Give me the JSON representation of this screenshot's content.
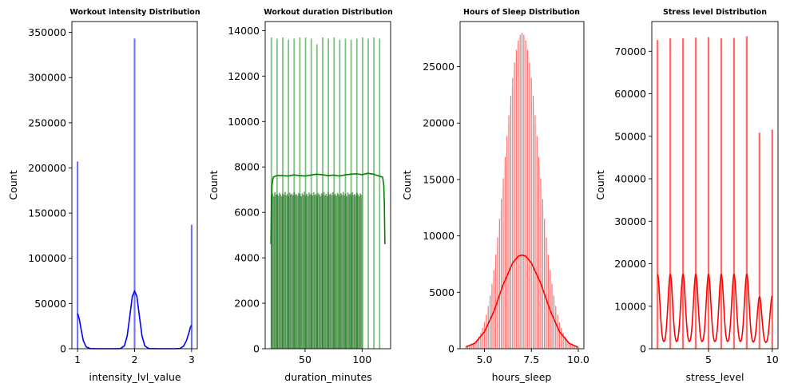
{
  "chart_data": [
    {
      "type": "histogram",
      "title": "Workout intensity Distribution",
      "xlabel": "intensity_lvl_value",
      "ylabel": "Count",
      "xlim": [
        0.9,
        3.1
      ],
      "ylim": [
        0,
        362000
      ],
      "xticks": [
        1,
        2,
        3
      ],
      "yticks": [
        0,
        50000,
        100000,
        150000,
        200000,
        250000,
        300000,
        350000
      ],
      "color": "#0000ff",
      "bar_width": 0.012,
      "bars": [
        {
          "x": 1,
          "count": 207000
        },
        {
          "x": 2,
          "count": 343000
        },
        {
          "x": 3,
          "count": 137000
        }
      ],
      "kde": [
        [
          1.0,
          39000
        ],
        [
          1.03,
          33000
        ],
        [
          1.06,
          22000
        ],
        [
          1.1,
          9000
        ],
        [
          1.15,
          2000
        ],
        [
          1.22,
          200
        ],
        [
          1.35,
          0
        ],
        [
          1.6,
          0
        ],
        [
          1.75,
          200
        ],
        [
          1.82,
          3000
        ],
        [
          1.87,
          14000
        ],
        [
          1.92,
          38000
        ],
        [
          1.96,
          58000
        ],
        [
          2.0,
          64000
        ],
        [
          2.04,
          58000
        ],
        [
          2.08,
          38000
        ],
        [
          2.13,
          14000
        ],
        [
          2.18,
          3000
        ],
        [
          2.25,
          200
        ],
        [
          2.4,
          0
        ],
        [
          2.7,
          0
        ],
        [
          2.8,
          300
        ],
        [
          2.86,
          3000
        ],
        [
          2.91,
          9000
        ],
        [
          2.95,
          17000
        ],
        [
          2.98,
          24000
        ],
        [
          3.0,
          26000
        ]
      ]
    },
    {
      "type": "histogram",
      "title": "Workout duration Distribution",
      "xlabel": "duration_minutes",
      "ylabel": "Count",
      "xlim": [
        15,
        125
      ],
      "ylim": [
        0,
        14400
      ],
      "xticks": [
        50,
        100
      ],
      "yticks": [
        0,
        2000,
        4000,
        6000,
        8000,
        10000,
        12000,
        14000
      ],
      "color": "#008000",
      "bin_start": 20,
      "bin_width": 1,
      "spike_every": 5,
      "spike_counts": [
        13700,
        13650,
        13700,
        13600,
        13650,
        13700,
        13700,
        13650,
        13400,
        13700,
        13650,
        13700,
        13600,
        13650,
        13600,
        13650,
        13700,
        13650,
        13700,
        13650
      ],
      "base_counts": [
        6750,
        6820,
        6700,
        6880,
        6760,
        6800,
        6720,
        6850,
        6780,
        6700,
        6830,
        6760,
        6890,
        6740,
        6810,
        6700,
        6860,
        6770,
        6820,
        6740,
        6880,
        6760,
        6800,
        6720,
        6850,
        6790,
        6700,
        6830,
        6760,
        6900,
        6740,
        6810,
        6700,
        6860,
        6770,
        6820,
        6740,
        6880,
        6760,
        6800,
        6720,
        6850,
        6780,
        6700,
        6830,
        6760,
        6890,
        6740,
        6810,
        6700,
        6860,
        6770,
        6820,
        6740,
        6880,
        6760,
        6800,
        6720,
        6850,
        6780,
        6700,
        6830,
        6760,
        6890,
        6740,
        6810,
        6700,
        6860,
        6770,
        6820,
        6740,
        6880,
        6760,
        6800,
        6720,
        6850,
        6780,
        6700,
        6830,
        6760
      ],
      "kde": [
        [
          20,
          4600
        ],
        [
          20.5,
          6400
        ],
        [
          21,
          7200
        ],
        [
          22,
          7550
        ],
        [
          25,
          7620
        ],
        [
          30,
          7620
        ],
        [
          35,
          7600
        ],
        [
          40,
          7650
        ],
        [
          45,
          7620
        ],
        [
          50,
          7600
        ],
        [
          55,
          7640
        ],
        [
          60,
          7680
        ],
        [
          65,
          7660
        ],
        [
          70,
          7620
        ],
        [
          75,
          7640
        ],
        [
          80,
          7600
        ],
        [
          85,
          7650
        ],
        [
          90,
          7680
        ],
        [
          95,
          7700
        ],
        [
          100,
          7660
        ],
        [
          105,
          7720
        ],
        [
          110,
          7680
        ],
        [
          115,
          7600
        ],
        [
          118,
          7550
        ],
        [
          119,
          7200
        ],
        [
          119.5,
          6400
        ],
        [
          120,
          4600
        ]
      ]
    },
    {
      "type": "histogram",
      "title": "Hours of Sleep Distribution",
      "xlabel": "hours_sleep",
      "ylabel": "Count",
      "xlim": [
        3.7,
        10.3
      ],
      "ylim": [
        0,
        29000
      ],
      "xticks": [
        5.0,
        7.5,
        10.0
      ],
      "ytick_format": "plain",
      "yticks": [
        0,
        5000,
        10000,
        15000,
        20000,
        25000
      ],
      "color": "#ff0000",
      "bin_start": 4.0,
      "bin_width": 0.05,
      "spike_every": 2,
      "spike_center": 7.0,
      "spike_sigma": 0.9,
      "spike_peak": 28000,
      "ghost_ratio": 1.0,
      "kde": [
        [
          4.0,
          150
        ],
        [
          4.5,
          500
        ],
        [
          5.0,
          1500
        ],
        [
          5.5,
          3300
        ],
        [
          6.0,
          5700
        ],
        [
          6.5,
          7600
        ],
        [
          6.8,
          8200
        ],
        [
          7.0,
          8300
        ],
        [
          7.2,
          8200
        ],
        [
          7.5,
          7600
        ],
        [
          8.0,
          5800
        ],
        [
          8.5,
          3400
        ],
        [
          9.0,
          1500
        ],
        [
          9.5,
          500
        ],
        [
          10.0,
          120
        ]
      ]
    },
    {
      "type": "histogram",
      "title": "Stress level Distribution",
      "xlabel": "stress_level",
      "ylabel": "Count",
      "xlim": [
        0.55,
        10.45
      ],
      "ylim": [
        0,
        77000
      ],
      "xticks": [
        5,
        10
      ],
      "yticks": [
        0,
        10000,
        20000,
        30000,
        40000,
        50000,
        60000,
        70000
      ],
      "color": "#ff0000",
      "bar_width": 0.12,
      "bars": [
        {
          "x": 1,
          "count": 72600
        },
        {
          "x": 2,
          "count": 73000
        },
        {
          "x": 3,
          "count": 73000
        },
        {
          "x": 4,
          "count": 73200
        },
        {
          "x": 5,
          "count": 73300
        },
        {
          "x": 6,
          "count": 73000
        },
        {
          "x": 7,
          "count": 73100
        },
        {
          "x": 8,
          "count": 73500
        },
        {
          "x": 9,
          "count": 50800
        },
        {
          "x": 10,
          "count": 51500
        }
      ],
      "kde_peaks": [
        17500,
        17500,
        17500,
        17500,
        17500,
        17500,
        17500,
        17500,
        12200,
        12400
      ],
      "kde_min": 1000,
      "kde_sigma": 0.18
    }
  ]
}
